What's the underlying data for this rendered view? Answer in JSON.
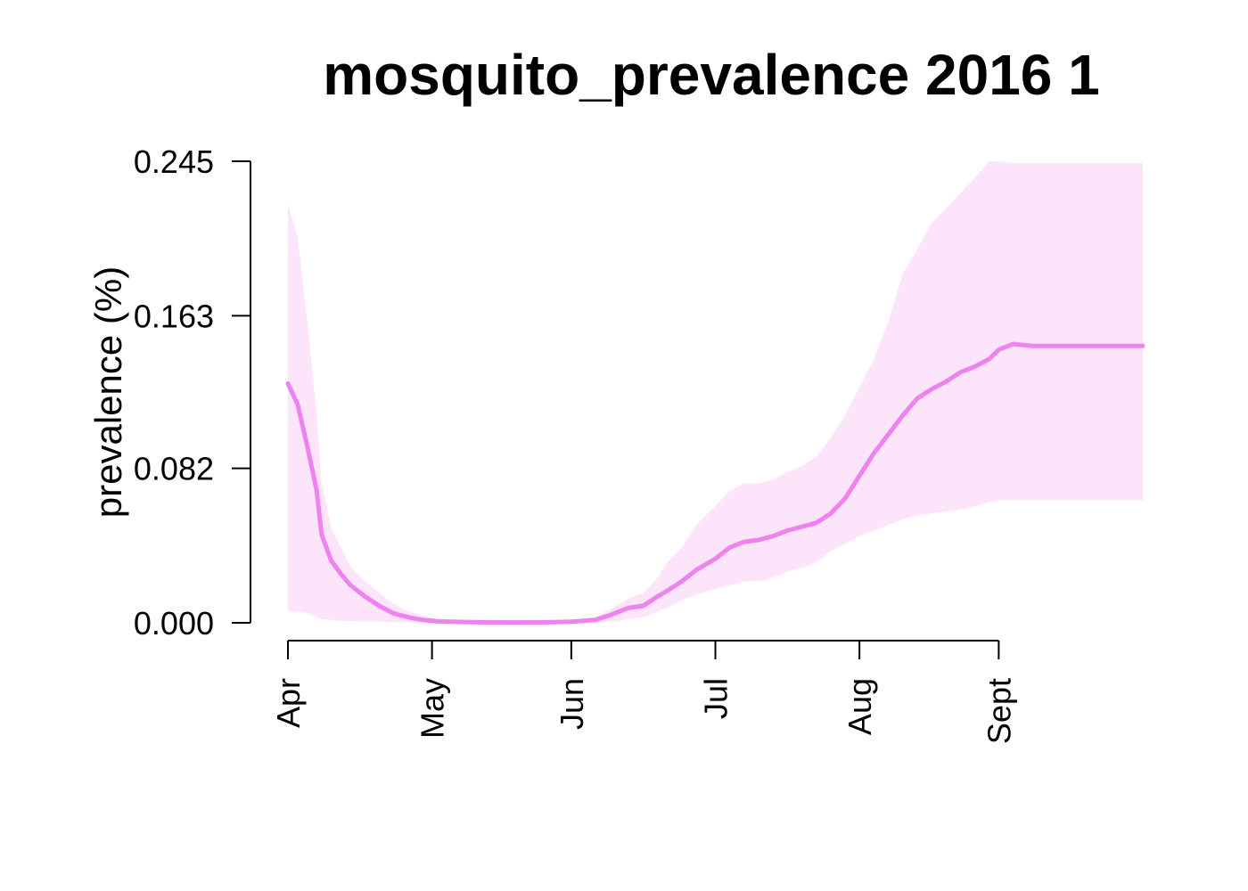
{
  "chart_data": {
    "type": "area",
    "title": "mosquito_prevalence 2016 1",
    "xlabel": "",
    "ylabel": "prevalence (%)",
    "x_type": "date",
    "xlim": [
      "2016-04-01",
      "2016-09-26"
    ],
    "ylim": [
      0,
      0.245
    ],
    "y_ticks": [
      0.0,
      0.082,
      0.163,
      0.245
    ],
    "y_tick_labels": [
      "0.000",
      "0.082",
      "0.163",
      "0.245"
    ],
    "x_ticks": [
      {
        "date": "2016-04-01",
        "label": "Apr"
      },
      {
        "date": "2016-05-01",
        "label": "May"
      },
      {
        "date": "2016-05-30",
        "label": "Jun"
      },
      {
        "date": "2016-06-29",
        "label": "Jul"
      },
      {
        "date": "2016-07-29",
        "label": "Aug"
      },
      {
        "date": "2016-08-27",
        "label": "Sept"
      }
    ],
    "grid": false,
    "legend": "none",
    "colors": {
      "line": "#EE82EE",
      "band": "#FCE4FA"
    },
    "series": [
      {
        "kind": "line",
        "x": [
          "2016-04-01",
          "2016-04-03",
          "2016-04-05",
          "2016-04-07",
          "2016-04-08",
          "2016-04-10",
          "2016-04-12",
          "2016-04-14",
          "2016-04-17",
          "2016-04-20",
          "2016-04-23",
          "2016-04-26",
          "2016-04-29",
          "2016-05-02",
          "2016-05-06",
          "2016-05-11",
          "2016-05-18",
          "2016-05-25",
          "2016-05-30",
          "2016-06-04",
          "2016-06-07",
          "2016-06-09",
          "2016-06-11",
          "2016-06-14",
          "2016-06-17",
          "2016-06-19",
          "2016-06-22",
          "2016-06-25",
          "2016-06-29",
          "2016-07-02",
          "2016-07-05",
          "2016-07-08",
          "2016-07-11",
          "2016-07-14",
          "2016-07-17",
          "2016-07-20",
          "2016-07-23",
          "2016-07-26",
          "2016-07-29",
          "2016-08-01",
          "2016-08-04",
          "2016-08-07",
          "2016-08-10",
          "2016-08-13",
          "2016-08-16",
          "2016-08-19",
          "2016-08-22",
          "2016-08-25",
          "2016-08-27",
          "2016-08-30",
          "2016-09-03",
          "2016-09-08",
          "2016-09-14",
          "2016-09-20",
          "2016-09-26"
        ],
        "y": [
          0.127,
          0.116,
          0.094,
          0.07,
          0.047,
          0.033,
          0.026,
          0.02,
          0.014,
          0.009,
          0.005,
          0.003,
          0.0015,
          0.0008,
          0.0005,
          0.0003,
          0.0002,
          0.0003,
          0.0006,
          0.0015,
          0.004,
          0.006,
          0.008,
          0.009,
          0.014,
          0.017,
          0.022,
          0.028,
          0.034,
          0.04,
          0.043,
          0.044,
          0.046,
          0.049,
          0.051,
          0.053,
          0.058,
          0.066,
          0.078,
          0.09,
          0.1,
          0.11,
          0.119,
          0.124,
          0.128,
          0.133,
          0.136,
          0.14,
          0.145,
          0.148,
          0.147,
          0.147,
          0.147,
          0.147,
          0.147
        ]
      },
      {
        "kind": "band",
        "x": [
          "2016-04-01",
          "2016-04-03",
          "2016-04-05",
          "2016-04-07",
          "2016-04-08",
          "2016-04-10",
          "2016-04-12",
          "2016-04-14",
          "2016-04-17",
          "2016-04-20",
          "2016-04-23",
          "2016-04-26",
          "2016-04-29",
          "2016-05-02",
          "2016-05-06",
          "2016-05-11",
          "2016-05-18",
          "2016-05-25",
          "2016-05-30",
          "2016-06-04",
          "2016-06-07",
          "2016-06-09",
          "2016-06-11",
          "2016-06-14",
          "2016-06-17",
          "2016-06-19",
          "2016-06-22",
          "2016-06-25",
          "2016-06-29",
          "2016-07-02",
          "2016-07-05",
          "2016-07-08",
          "2016-07-11",
          "2016-07-14",
          "2016-07-17",
          "2016-07-20",
          "2016-07-23",
          "2016-07-26",
          "2016-07-29",
          "2016-08-01",
          "2016-08-04",
          "2016-08-07",
          "2016-08-10",
          "2016-08-13",
          "2016-08-16",
          "2016-08-19",
          "2016-08-22",
          "2016-08-25",
          "2016-08-27",
          "2016-08-30",
          "2016-09-03",
          "2016-09-08",
          "2016-09-14",
          "2016-09-20",
          "2016-09-26"
        ],
        "lower": [
          0.006,
          0.006,
          0.005,
          0.003,
          0.002,
          0.0015,
          0.001,
          0.001,
          0.0008,
          0.0006,
          0.0004,
          0.0003,
          0.0002,
          0.0002,
          0.0001,
          0.0001,
          0.0001,
          0.0001,
          0.0001,
          0.0002,
          0.0005,
          0.001,
          0.002,
          0.003,
          0.006,
          0.008,
          0.012,
          0.015,
          0.018,
          0.02,
          0.022,
          0.022,
          0.024,
          0.027,
          0.029,
          0.032,
          0.038,
          0.042,
          0.046,
          0.049,
          0.052,
          0.055,
          0.057,
          0.058,
          0.059,
          0.06,
          0.062,
          0.064,
          0.065,
          0.065,
          0.065,
          0.065,
          0.065,
          0.065,
          0.065
        ],
        "upper": [
          0.222,
          0.205,
          0.16,
          0.11,
          0.075,
          0.05,
          0.04,
          0.03,
          0.022,
          0.016,
          0.01,
          0.006,
          0.004,
          0.002,
          0.001,
          0.001,
          0.0008,
          0.001,
          0.0015,
          0.003,
          0.007,
          0.01,
          0.013,
          0.016,
          0.024,
          0.032,
          0.04,
          0.052,
          0.062,
          0.07,
          0.074,
          0.074,
          0.076,
          0.08,
          0.083,
          0.088,
          0.098,
          0.11,
          0.125,
          0.14,
          0.16,
          0.185,
          0.198,
          0.212,
          0.22,
          0.228,
          0.236,
          0.245,
          0.245,
          0.244,
          0.244,
          0.244,
          0.244,
          0.244,
          0.244
        ]
      }
    ]
  }
}
